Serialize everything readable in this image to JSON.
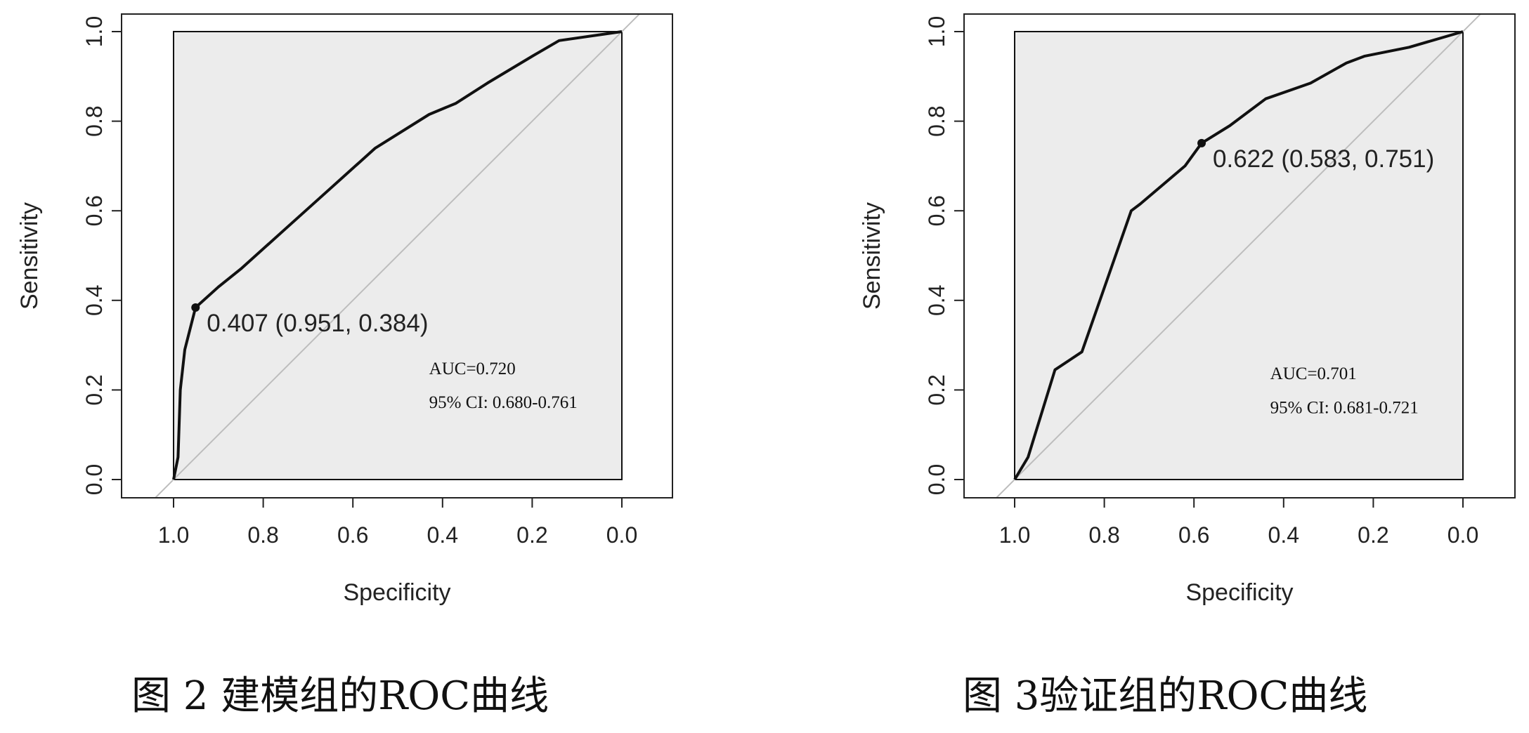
{
  "chart_data": [
    {
      "type": "line",
      "xlabel": "Specificity",
      "ylabel": "Sensitivity",
      "x_reversed": true,
      "xlim": [
        1.12,
        -0.12
      ],
      "ylim": [
        -0.04,
        1.04
      ],
      "xticks": [
        "1.0",
        "0.8",
        "0.6",
        "0.4",
        "0.2",
        "0.0"
      ],
      "yticks": [
        "0.0",
        "0.2",
        "0.4",
        "0.6",
        "0.8",
        "1.0"
      ],
      "x": [
        1.0,
        0.99,
        0.985,
        0.975,
        0.951,
        0.9,
        0.85,
        0.75,
        0.65,
        0.55,
        0.43,
        0.37,
        0.3,
        0.2,
        0.14,
        0.0
      ],
      "y": [
        0.0,
        0.05,
        0.2,
        0.29,
        0.384,
        0.43,
        0.47,
        0.56,
        0.65,
        0.74,
        0.815,
        0.84,
        0.885,
        0.945,
        0.98,
        1.0
      ],
      "threshold_point": {
        "x": 0.951,
        "y": 0.384,
        "label": "0.407 (0.951, 0.384)"
      },
      "auc_text": "AUC=0.720",
      "ci_text": "95% CI: 0.680-0.761",
      "caption": "图 2 建模组的ROC曲线",
      "colors": {
        "curve": "#111111",
        "diagonal": "#bdbdbd",
        "fill": "#ececec",
        "box": "#222222"
      }
    },
    {
      "type": "line",
      "xlabel": "Specificity",
      "ylabel": "Sensitivity",
      "x_reversed": true,
      "xlim": [
        1.12,
        -0.12
      ],
      "ylim": [
        -0.04,
        1.04
      ],
      "xticks": [
        "1.0",
        "0.8",
        "0.6",
        "0.4",
        "0.2",
        "0.0"
      ],
      "yticks": [
        "0.0",
        "0.2",
        "0.4",
        "0.6",
        "0.8",
        "1.0"
      ],
      "x": [
        1.0,
        0.97,
        0.91,
        0.85,
        0.74,
        0.72,
        0.62,
        0.583,
        0.52,
        0.44,
        0.34,
        0.26,
        0.22,
        0.12,
        0.0
      ],
      "y": [
        0.0,
        0.05,
        0.245,
        0.285,
        0.6,
        0.615,
        0.7,
        0.751,
        0.79,
        0.85,
        0.885,
        0.93,
        0.945,
        0.965,
        1.0
      ],
      "threshold_point": {
        "x": 0.583,
        "y": 0.751,
        "label": "0.622 (0.583, 0.751)"
      },
      "auc_text": "AUC=0.701",
      "ci_text": "95% CI: 0.681-0.721",
      "caption": "图 3验证组的ROC曲线",
      "colors": {
        "curve": "#111111",
        "diagonal": "#bdbdbd",
        "fill": "#ececec",
        "box": "#222222"
      }
    }
  ]
}
